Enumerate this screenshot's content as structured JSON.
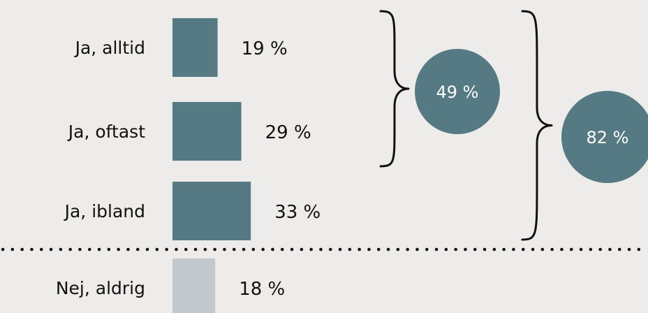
{
  "chart_data": {
    "type": "bar",
    "orientation": "horizontal",
    "categories": [
      "Ja, alltid",
      "Ja, oftast",
      "Ja, ibland",
      "Nej, aldrig"
    ],
    "values": [
      19,
      29,
      33,
      18
    ],
    "value_labels": [
      "19 %",
      "29 %",
      "33 %",
      "18 %"
    ],
    "unit": "%",
    "colors": {
      "yes": "#557a83",
      "no": "#c2c8cb",
      "bubble": "#557a83",
      "text": "#111111",
      "background": "#eeecea"
    },
    "groups": [
      {
        "members": [
          "Ja, alltid",
          "Ja, oftast"
        ],
        "total": 49,
        "label": "49 %"
      },
      {
        "members": [
          "Ja, alltid",
          "Ja, oftast",
          "Ja, ibland"
        ],
        "total": 82,
        "label": "82 %"
      }
    ],
    "divider": {
      "style": "dotted",
      "between": [
        "Ja, ibland",
        "Nej, aldrig"
      ]
    }
  }
}
